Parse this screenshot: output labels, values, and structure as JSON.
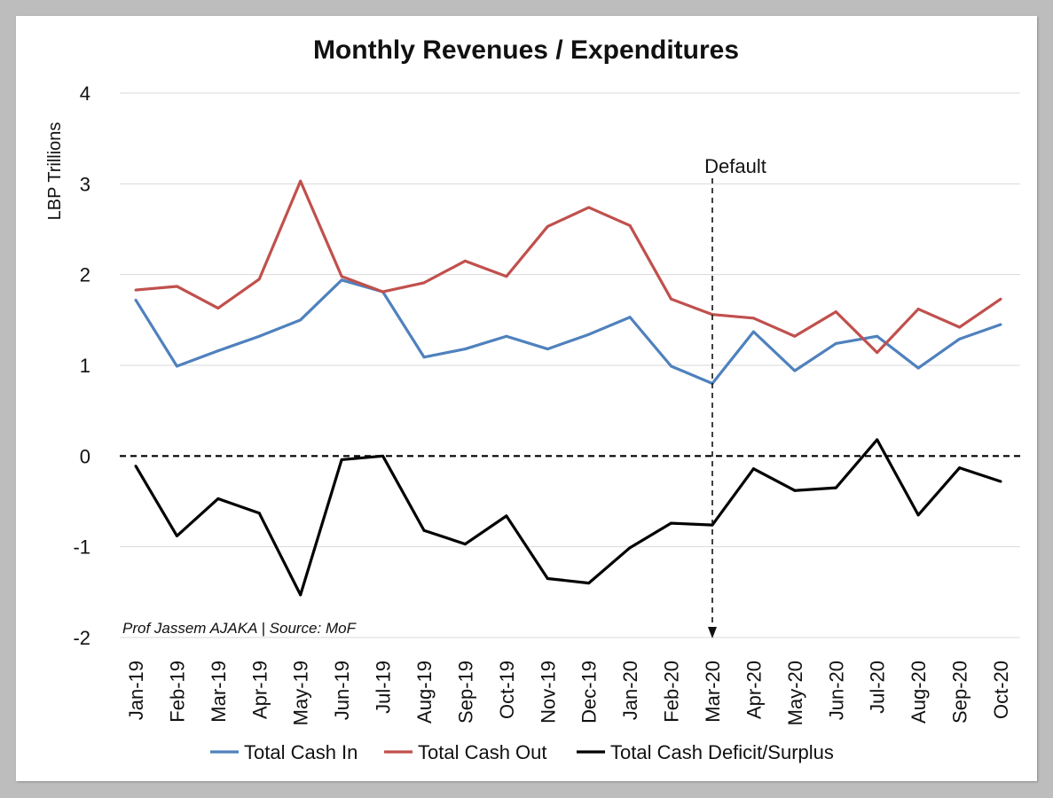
{
  "chart_data": {
    "type": "line",
    "title": "Monthly Revenues / Expenditures",
    "ylabel": "LBP Trillions",
    "xlabel": "",
    "ylim": [
      -2,
      4
    ],
    "yticks": [
      "4",
      "3",
      "2",
      "1",
      "0",
      "-1",
      "-2"
    ],
    "grid": true,
    "legend_position": "bottom",
    "categories": [
      "Jan-19",
      "Feb-19",
      "Mar-19",
      "Apr-19",
      "May-19",
      "Jun-19",
      "Jul-19",
      "Aug-19",
      "Sep-19",
      "Oct-19",
      "Nov-19",
      "Dec-19",
      "Jan-20",
      "Feb-20",
      "Mar-20",
      "Apr-20",
      "May-20",
      "Jun-20",
      "Jul-20",
      "Aug-20",
      "Sep-20",
      "Oct-20"
    ],
    "series": [
      {
        "name": "Total Cash In",
        "color": "#4f81bd",
        "values": [
          1.72,
          0.99,
          1.16,
          1.32,
          1.5,
          1.94,
          1.81,
          1.09,
          1.18,
          1.32,
          1.18,
          1.34,
          1.53,
          0.99,
          0.8,
          1.37,
          0.94,
          1.24,
          1.32,
          0.97,
          1.29,
          1.45
        ]
      },
      {
        "name": "Total Cash Out",
        "color": "#c0504d",
        "values": [
          1.83,
          1.87,
          1.63,
          1.95,
          3.03,
          1.98,
          1.81,
          1.91,
          2.15,
          1.98,
          2.53,
          2.74,
          2.54,
          1.73,
          1.56,
          1.52,
          1.32,
          1.59,
          1.14,
          1.62,
          1.42,
          1.73
        ]
      },
      {
        "name": "Total Cash Deficit/Surplus",
        "color": "#000000",
        "values": [
          -0.11,
          -0.88,
          -0.47,
          -0.63,
          -1.53,
          -0.04,
          0.0,
          -0.82,
          -0.97,
          -0.66,
          -1.35,
          -1.4,
          -1.01,
          -0.74,
          -0.76,
          -0.14,
          -0.38,
          -0.35,
          0.18,
          -0.65,
          -0.13,
          -0.28
        ]
      }
    ],
    "annotations": [
      {
        "text": "Default",
        "x": "Mar-20"
      },
      {
        "text": "Prof Jassem AJAKA | Source: MoF"
      }
    ],
    "reference_line_y": 0
  }
}
